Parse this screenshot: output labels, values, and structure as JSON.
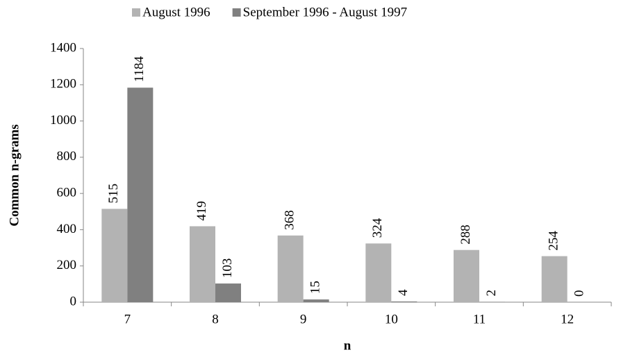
{
  "chart_data": {
    "type": "bar",
    "categories": [
      "7",
      "8",
      "9",
      "10",
      "11",
      "12"
    ],
    "series": [
      {
        "name": "August 1996",
        "color": "#b3b3b3",
        "values": [
          515,
          419,
          368,
          324,
          288,
          254
        ]
      },
      {
        "name": "September 1996 - August 1997",
        "color": "#808080",
        "values": [
          1184,
          103,
          15,
          4,
          2,
          0
        ]
      }
    ],
    "xlabel": "n",
    "ylabel": "Common n-grams",
    "ylim": [
      0,
      1400
    ],
    "yticks": [
      0,
      200,
      400,
      600,
      800,
      1000,
      1200,
      1400
    ],
    "grid": false,
    "legend": "top",
    "data_labels": true
  }
}
